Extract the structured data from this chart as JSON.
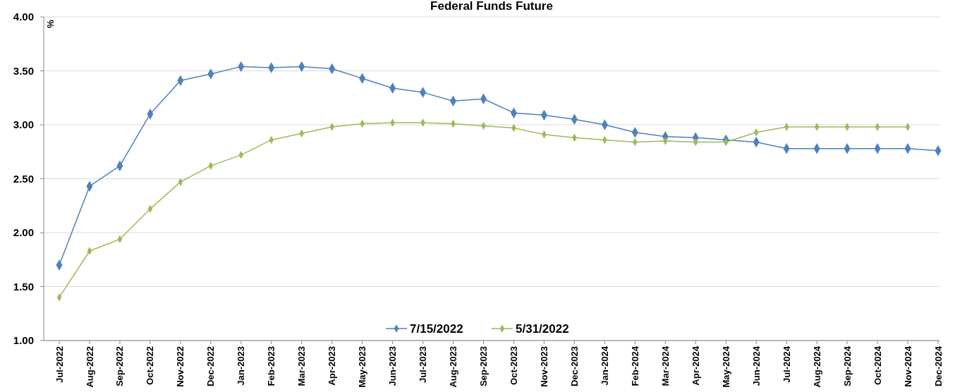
{
  "chart_data": {
    "type": "line",
    "title": "Federal Funds Future",
    "ylabel": "%",
    "categories": [
      "Jul-2022",
      "Aug-2022",
      "Sep-2022",
      "Oct-2022",
      "Nov-2022",
      "Dec-2022",
      "Jan-2023",
      "Feb-2023",
      "Mar-2023",
      "Apr-2023",
      "May-2023",
      "Jun-2023",
      "Jul-2023",
      "Aug-2023",
      "Sep-2023",
      "Oct-2023",
      "Nov-2023",
      "Dec-2023",
      "Jan-2024",
      "Feb-2024",
      "Mar-2024",
      "Apr-2024",
      "May-2024",
      "Jun-2024",
      "Jul-2024",
      "Aug-2024",
      "Sep-2024",
      "Oct-2024",
      "Nov-2024",
      "Dec-2024"
    ],
    "series": [
      {
        "name": "7/15/2022",
        "color": "#4f81bd",
        "values": [
          1.7,
          2.43,
          2.62,
          3.1,
          3.41,
          3.47,
          3.54,
          3.53,
          3.54,
          3.52,
          3.43,
          3.34,
          3.3,
          3.22,
          3.24,
          3.11,
          3.09,
          3.05,
          3.0,
          2.93,
          2.89,
          2.88,
          2.86,
          2.84,
          2.78,
          2.78,
          2.78,
          2.78,
          2.78,
          2.76
        ]
      },
      {
        "name": "5/31/2022",
        "color": "#9bbb59",
        "values": [
          1.4,
          1.83,
          1.94,
          2.22,
          2.47,
          2.62,
          2.72,
          2.86,
          2.92,
          2.98,
          3.01,
          3.02,
          3.02,
          3.01,
          2.99,
          2.97,
          2.91,
          2.88,
          2.86,
          2.84,
          2.85,
          2.84,
          2.84,
          2.93,
          2.98,
          2.98,
          2.98,
          2.98,
          2.98,
          null
        ]
      }
    ],
    "ylim": [
      1,
      4
    ],
    "yticks": [
      {
        "value": 1,
        "label": "1.00"
      },
      {
        "value": 1.5,
        "label": "1.50"
      },
      {
        "value": 2,
        "label": "2.00"
      },
      {
        "value": 2.5,
        "label": "2.50"
      },
      {
        "value": 3,
        "label": "3.00"
      },
      {
        "value": 3.5,
        "label": "3.50"
      },
      {
        "value": 4,
        "label": "4.00"
      }
    ],
    "grid": "y",
    "legend": "bottom",
    "marker": "diamond",
    "line_style": "solid"
  }
}
